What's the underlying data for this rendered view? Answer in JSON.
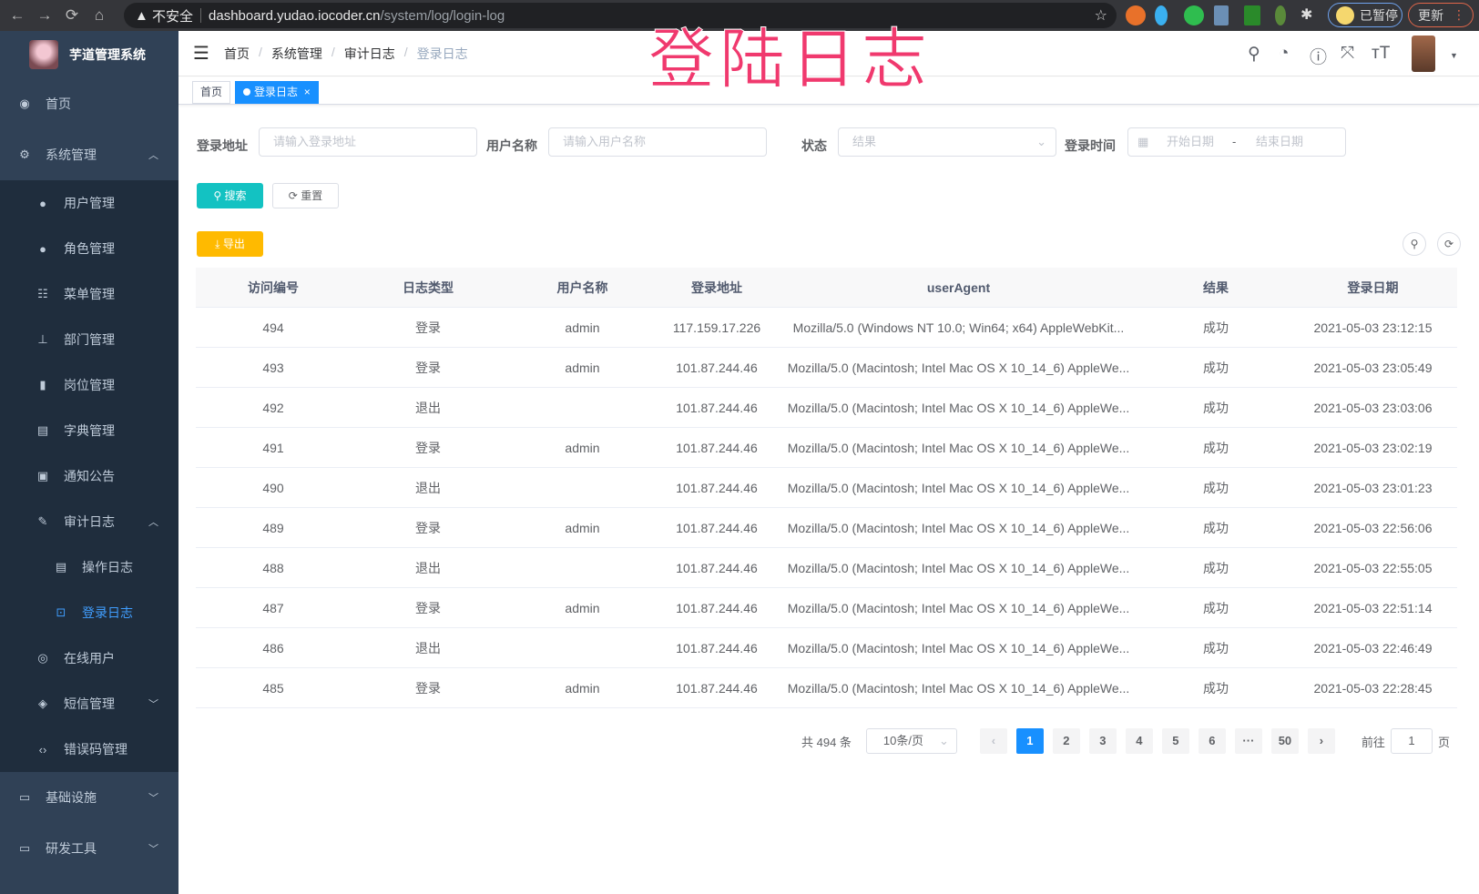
{
  "browser": {
    "back": "←",
    "forward": "→",
    "reload": "⟳",
    "home": "⌂",
    "security": "不安全",
    "url_host": "dashboard.yudao.iocoder.cn",
    "url_path": "/system/log/login-log",
    "profile_label": "已暂停",
    "update_label": "更新"
  },
  "overlay_title": "登陆日志",
  "sidebar": {
    "app_name": "芋道管理系统",
    "items": [
      {
        "label": "首页",
        "icon": "dashboard-icon"
      },
      {
        "label": "系统管理",
        "icon": "gear-icon",
        "expanded": true,
        "children": [
          {
            "label": "用户管理",
            "icon": "user-icon"
          },
          {
            "label": "角色管理",
            "icon": "peoples-icon"
          },
          {
            "label": "菜单管理",
            "icon": "tree-table-icon"
          },
          {
            "label": "部门管理",
            "icon": "tree-icon"
          },
          {
            "label": "岗位管理",
            "icon": "post-icon"
          },
          {
            "label": "字典管理",
            "icon": "dict-icon"
          },
          {
            "label": "通知公告",
            "icon": "message-icon"
          },
          {
            "label": "审计日志",
            "icon": "log-icon",
            "expanded": true,
            "children": [
              {
                "label": "操作日志",
                "icon": "form-icon"
              },
              {
                "label": "登录日志",
                "icon": "logininfor-icon",
                "active": true
              }
            ]
          },
          {
            "label": "在线用户",
            "icon": "online-icon"
          },
          {
            "label": "短信管理",
            "icon": "validCode-icon"
          },
          {
            "label": "错误码管理",
            "icon": "code-icon"
          }
        ]
      },
      {
        "label": "基础设施",
        "icon": "monitor-icon"
      },
      {
        "label": "研发工具",
        "icon": "tool-icon"
      }
    ]
  },
  "breadcrumb": [
    "首页",
    "系统管理",
    "审计日志",
    "登录日志"
  ],
  "tags": [
    {
      "label": "首页"
    },
    {
      "label": "登录日志",
      "close": "×"
    }
  ],
  "filters": {
    "address": {
      "label": "登录地址",
      "placeholder": "请输入登录地址"
    },
    "username": {
      "label": "用户名称",
      "placeholder": "请输入用户名称"
    },
    "status": {
      "label": "状态",
      "placeholder": "结果"
    },
    "time": {
      "label": "登录时间",
      "start": "开始日期",
      "sep": "-",
      "end": "结束日期"
    },
    "search": "搜索",
    "reset": "重置"
  },
  "export": "导出",
  "table": {
    "columns": [
      "访问编号",
      "日志类型",
      "用户名称",
      "登录地址",
      "userAgent",
      "结果",
      "登录日期"
    ],
    "rows": [
      [
        "494",
        "登录",
        "admin",
        "117.159.17.226",
        "Mozilla/5.0 (Windows NT 10.0; Win64; x64) AppleWebKit...",
        "成功",
        "2021-05-03 23:12:15"
      ],
      [
        "493",
        "登录",
        "admin",
        "101.87.244.46",
        "Mozilla/5.0 (Macintosh; Intel Mac OS X 10_14_6) AppleWe...",
        "成功",
        "2021-05-03 23:05:49"
      ],
      [
        "492",
        "退出",
        "",
        "101.87.244.46",
        "Mozilla/5.0 (Macintosh; Intel Mac OS X 10_14_6) AppleWe...",
        "成功",
        "2021-05-03 23:03:06"
      ],
      [
        "491",
        "登录",
        "admin",
        "101.87.244.46",
        "Mozilla/5.0 (Macintosh; Intel Mac OS X 10_14_6) AppleWe...",
        "成功",
        "2021-05-03 23:02:19"
      ],
      [
        "490",
        "退出",
        "",
        "101.87.244.46",
        "Mozilla/5.0 (Macintosh; Intel Mac OS X 10_14_6) AppleWe...",
        "成功",
        "2021-05-03 23:01:23"
      ],
      [
        "489",
        "登录",
        "admin",
        "101.87.244.46",
        "Mozilla/5.0 (Macintosh; Intel Mac OS X 10_14_6) AppleWe...",
        "成功",
        "2021-05-03 22:56:06"
      ],
      [
        "488",
        "退出",
        "",
        "101.87.244.46",
        "Mozilla/5.0 (Macintosh; Intel Mac OS X 10_14_6) AppleWe...",
        "成功",
        "2021-05-03 22:55:05"
      ],
      [
        "487",
        "登录",
        "admin",
        "101.87.244.46",
        "Mozilla/5.0 (Macintosh; Intel Mac OS X 10_14_6) AppleWe...",
        "成功",
        "2021-05-03 22:51:14"
      ],
      [
        "486",
        "退出",
        "",
        "101.87.244.46",
        "Mozilla/5.0 (Macintosh; Intel Mac OS X 10_14_6) AppleWe...",
        "成功",
        "2021-05-03 22:46:49"
      ],
      [
        "485",
        "登录",
        "admin",
        "101.87.244.46",
        "Mozilla/5.0 (Macintosh; Intel Mac OS X 10_14_6) AppleWe...",
        "成功",
        "2021-05-03 22:28:45"
      ]
    ]
  },
  "pagination": {
    "total": "共 494 条",
    "page_size": "10条/页",
    "prev": "‹",
    "pages": [
      "1",
      "2",
      "3",
      "4",
      "5",
      "6",
      "···",
      "50"
    ],
    "current": "1",
    "next": "›",
    "goto_label": "前往",
    "goto_value": "1",
    "goto_suffix": "页"
  },
  "colors": {
    "sidebar": "#304156",
    "submenu": "#1f2d3d",
    "primary": "#1890ff",
    "search_btn": "#13c2c2",
    "export_btn": "#ffba00",
    "overlay": "#f0396e"
  }
}
